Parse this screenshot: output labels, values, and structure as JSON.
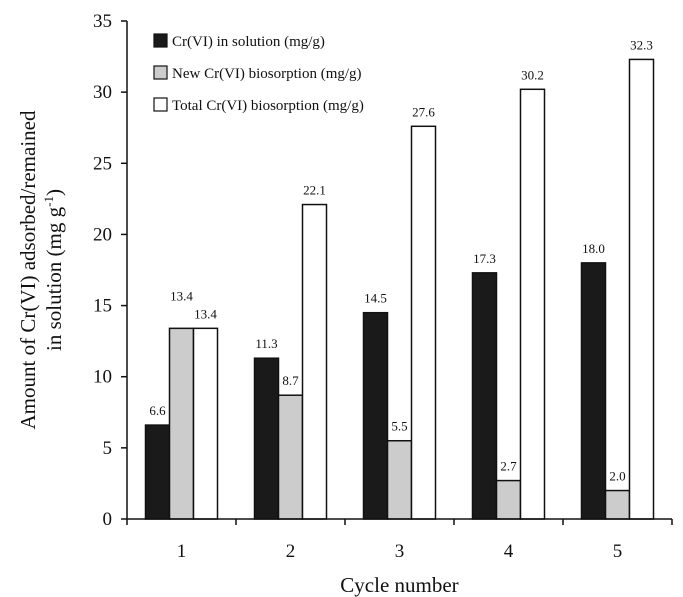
{
  "chart_data": {
    "type": "bar",
    "categories": [
      "1",
      "2",
      "3",
      "4",
      "5"
    ],
    "series": [
      {
        "name": "Cr(VI) in solution (mg/g)",
        "values": [
          6.6,
          11.3,
          14.5,
          17.3,
          18.0
        ],
        "color": "#1a1a1a",
        "labels": [
          "6.6",
          "11.3",
          "14.5",
          "17.3",
          "18.0"
        ]
      },
      {
        "name": "New Cr(VI) biosorption (mg/g)",
        "values": [
          13.4,
          8.7,
          5.5,
          2.7,
          2.0
        ],
        "color": "#cccccc",
        "labels": [
          "13.4",
          "8.7",
          "5.5",
          "2.7",
          "2.0"
        ]
      },
      {
        "name": "Total Cr(VI) biosorption (mg/g)",
        "values": [
          13.4,
          22.1,
          27.6,
          30.2,
          32.3
        ],
        "color": "#ffffff",
        "labels": [
          "13.4",
          "22.1",
          "27.6",
          "30.2",
          "32.3"
        ]
      }
    ],
    "xlabel": "Cycle number",
    "ylabel_line1": "Amount of Cr(VI) adsorbed/remained",
    "ylabel_line2": "in solution (mg g",
    "ylabel_sup": "-1",
    "ylabel_end": ")",
    "ylim": [
      0,
      35
    ],
    "yticks": [
      "0",
      "5",
      "10",
      "15",
      "20",
      "25",
      "30",
      "35"
    ],
    "grid": false,
    "legend_position": "top-left"
  }
}
